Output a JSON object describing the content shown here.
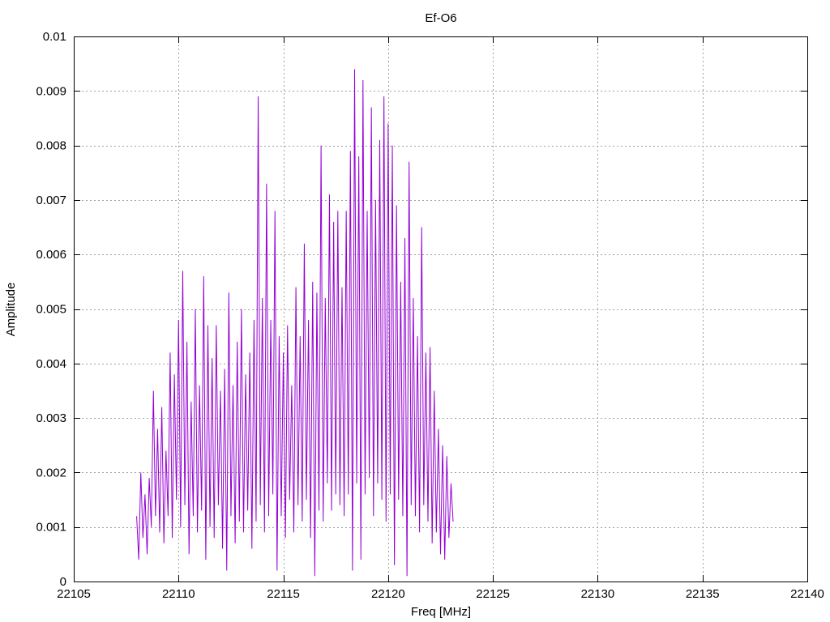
{
  "chart_data": {
    "type": "line",
    "title": "Ef-O6",
    "xlabel": "Freq [MHz]",
    "ylabel": "Amplitude",
    "xlim": [
      22105,
      22140
    ],
    "ylim": [
      0,
      0.01
    ],
    "grid": true,
    "xticks": [
      22105,
      22110,
      22115,
      22120,
      22125,
      22130,
      22135,
      22140
    ],
    "yticks": [
      0,
      0.001,
      0.002,
      0.003,
      0.004,
      0.005,
      0.006,
      0.007,
      0.008,
      0.009,
      0.01
    ],
    "xtick_labels": [
      "22105",
      "22110",
      "22115",
      "22120",
      "22125",
      "22130",
      "22135",
      "22140"
    ],
    "ytick_labels": [
      "0",
      "0.001",
      "0.002",
      "0.003",
      "0.004",
      "0.005",
      "0.006",
      "0.007",
      "0.008",
      "0.009",
      "0.01"
    ],
    "series": [
      {
        "color": "#9400d3",
        "x_start": 22108.0,
        "x_step": 0.1,
        "values": [
          0.0012,
          0.0004,
          0.002,
          0.0008,
          0.0016,
          0.0005,
          0.0019,
          0.001,
          0.0035,
          0.0012,
          0.0028,
          0.0009,
          0.0032,
          0.0007,
          0.0024,
          0.0012,
          0.0042,
          0.0008,
          0.0038,
          0.0015,
          0.0048,
          0.001,
          0.0057,
          0.0014,
          0.0044,
          0.0005,
          0.0033,
          0.0012,
          0.005,
          0.0009,
          0.0036,
          0.0013,
          0.0056,
          0.0004,
          0.0047,
          0.001,
          0.0041,
          0.0008,
          0.0047,
          0.0014,
          0.0035,
          0.0006,
          0.0039,
          0.0002,
          0.0053,
          0.0012,
          0.0036,
          0.0007,
          0.0044,
          0.0011,
          0.005,
          0.0009,
          0.0038,
          0.0013,
          0.0042,
          0.0006,
          0.0048,
          0.0011,
          0.0089,
          0.0014,
          0.0052,
          0.0009,
          0.0073,
          0.0012,
          0.0048,
          0.0016,
          0.0068,
          0.0002,
          0.0045,
          0.0012,
          0.0042,
          0.0008,
          0.0047,
          0.0015,
          0.0036,
          0.0009,
          0.0054,
          0.0014,
          0.0045,
          0.0011,
          0.0062,
          0.0015,
          0.0048,
          0.0008,
          0.0055,
          0.0001,
          0.0053,
          0.0013,
          0.008,
          0.0011,
          0.0052,
          0.0018,
          0.0071,
          0.0013,
          0.0066,
          0.0016,
          0.0068,
          0.0014,
          0.0054,
          0.0012,
          0.0068,
          0.0016,
          0.0079,
          0.0002,
          0.0094,
          0.0018,
          0.0078,
          0.0004,
          0.0092,
          0.0016,
          0.0068,
          0.0019,
          0.0087,
          0.0012,
          0.007,
          0.0018,
          0.0081,
          0.0015,
          0.0089,
          0.0011,
          0.0084,
          0.0016,
          0.008,
          0.0003,
          0.0069,
          0.0015,
          0.0055,
          0.0012,
          0.0063,
          0.0001,
          0.0077,
          0.0014,
          0.0052,
          0.0012,
          0.0045,
          0.0009,
          0.0065,
          0.0014,
          0.0042,
          0.0011,
          0.0043,
          0.0007,
          0.0035,
          0.0009,
          0.0028,
          0.0005,
          0.0025,
          0.0004,
          0.0023,
          0.0008,
          0.0018,
          0.0011
        ]
      }
    ]
  }
}
